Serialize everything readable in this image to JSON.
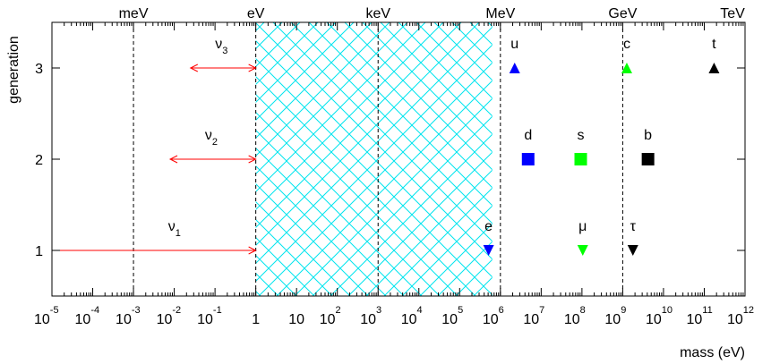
{
  "chart_data": {
    "type": "scatter",
    "xlabel": "mass (eV)",
    "ylabel": "generation",
    "x_scale": "log10",
    "xlim_exp": [
      -5,
      12
    ],
    "ylim": [
      0.5,
      3.5
    ],
    "yticks": [
      1,
      2,
      3
    ],
    "xtick_base": "10",
    "x_major_exponents": [
      -5,
      -4,
      -3,
      -2,
      -1,
      0,
      1,
      2,
      3,
      4,
      5,
      6,
      7,
      8,
      9,
      10,
      11,
      12
    ],
    "x_tick_labels": [
      {
        "exp": -5,
        "text": "10",
        "sup": "-5"
      },
      {
        "exp": -4,
        "text": "10",
        "sup": "-4"
      },
      {
        "exp": -3,
        "text": "10",
        "sup": "-3"
      },
      {
        "exp": -2,
        "text": "10",
        "sup": "-2"
      },
      {
        "exp": -1,
        "text": "10",
        "sup": "-1"
      },
      {
        "exp": 0,
        "text": "1",
        "sup": ""
      },
      {
        "exp": 1,
        "text": "10",
        "sup": ""
      },
      {
        "exp": 2,
        "text": "10",
        "sup": "2"
      },
      {
        "exp": 3,
        "text": "10",
        "sup": "3"
      },
      {
        "exp": 4,
        "text": "10",
        "sup": "4"
      },
      {
        "exp": 5,
        "text": "10",
        "sup": "5"
      },
      {
        "exp": 6,
        "text": "10",
        "sup": "6"
      },
      {
        "exp": 7,
        "text": "10",
        "sup": "7"
      },
      {
        "exp": 8,
        "text": "10",
        "sup": "8"
      },
      {
        "exp": 9,
        "text": "10",
        "sup": "9"
      },
      {
        "exp": 10,
        "text": "10",
        "sup": "10"
      },
      {
        "exp": 11,
        "text": "10",
        "sup": "11"
      },
      {
        "exp": 12,
        "text": "10",
        "sup": "12"
      }
    ],
    "top_units": [
      {
        "label": "meV",
        "exp": -3,
        "dashed_line": true
      },
      {
        "label": "eV",
        "exp": 0,
        "dashed_line": true
      },
      {
        "label": "keV",
        "exp": 3,
        "dashed_line": true
      },
      {
        "label": "MeV",
        "exp": 6,
        "dashed_line": true
      },
      {
        "label": "GeV",
        "exp": 9,
        "dashed_line": true
      },
      {
        "label": "TeV",
        "exp": 12,
        "dashed_line": false
      }
    ],
    "excluded_region_exp": [
      0,
      5.8
    ],
    "neutrino_ranges": [
      {
        "label": "ν",
        "sub": "1",
        "generation": 1,
        "from_exp": -5,
        "to_exp": 0
      },
      {
        "label": "ν",
        "sub": "2",
        "generation": 2,
        "from_exp": -2.1,
        "to_exp": 0
      },
      {
        "label": "ν",
        "sub": "3",
        "generation": 3,
        "from_exp": -1.6,
        "to_exp": 0
      }
    ],
    "particles": [
      {
        "label": "u",
        "generation": 3,
        "log10_mass": 6.35,
        "marker": "triangle-up",
        "color": "#0000ff"
      },
      {
        "label": "d",
        "generation": 2,
        "log10_mass": 6.68,
        "marker": "square",
        "color": "#0000ff"
      },
      {
        "label": "e",
        "generation": 1,
        "log10_mass": 5.71,
        "marker": "triangle-down",
        "color": "#0000ff"
      },
      {
        "label": "c",
        "generation": 3,
        "log10_mass": 9.1,
        "marker": "triangle-up",
        "color": "#00ff00"
      },
      {
        "label": "s",
        "generation": 2,
        "log10_mass": 7.97,
        "marker": "square",
        "color": "#00ff00"
      },
      {
        "label": "μ",
        "generation": 1,
        "log10_mass": 8.02,
        "marker": "triangle-down",
        "color": "#00ff00"
      },
      {
        "label": "t",
        "generation": 3,
        "log10_mass": 11.24,
        "marker": "triangle-up",
        "color": "#000000"
      },
      {
        "label": "b",
        "generation": 2,
        "log10_mass": 9.62,
        "marker": "square",
        "color": "#000000"
      },
      {
        "label": "τ",
        "generation": 1,
        "log10_mass": 9.25,
        "marker": "triangle-down",
        "color": "#000000"
      }
    ],
    "colors": {
      "arrow": "#ff0000",
      "hatch": "#00e5ee",
      "frame": "#000000"
    },
    "grid": false
  }
}
